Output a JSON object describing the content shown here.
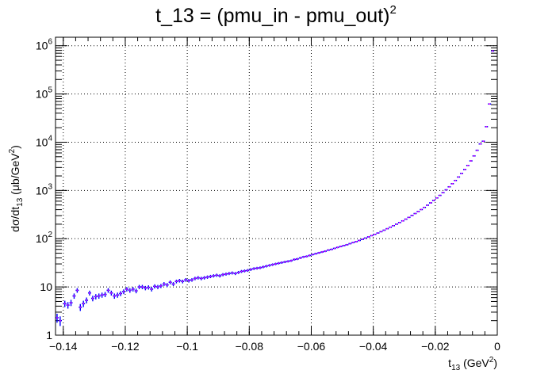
{
  "chart_data": {
    "type": "scatter",
    "title": {
      "main": "t_13 = (pmu_in - pmu_out)",
      "superscript": "2"
    },
    "xlabel": {
      "base": "t",
      "sub": "13",
      "unit_open": " (GeV",
      "unit_sup": "2",
      "unit_close": ")"
    },
    "ylabel": {
      "prefix": "dσ/dt",
      "sub": "13",
      "unit_open": " (μb/GeV",
      "unit_sup": "2",
      "unit_close": ")"
    },
    "x_tick_labels": [
      "−0.14",
      "−0.12",
      "−0.1",
      "−0.08",
      "−0.06",
      "−0.04",
      "−0.02",
      "0"
    ],
    "x_ticks": [
      -0.14,
      -0.12,
      -0.1,
      -0.08,
      -0.06,
      -0.04,
      -0.02,
      0
    ],
    "y_ticks": [
      {
        "value": 1,
        "base": "1",
        "exp": ""
      },
      {
        "value": 10,
        "base": "10",
        "exp": ""
      },
      {
        "value": 100,
        "base": "10",
        "exp": "2"
      },
      {
        "value": 1000,
        "base": "10",
        "exp": "3"
      },
      {
        "value": 10000,
        "base": "10",
        "exp": "4"
      },
      {
        "value": 100000,
        "base": "10",
        "exp": "5"
      },
      {
        "value": 1000000,
        "base": "10",
        "exp": "6"
      }
    ],
    "xlim": [
      -0.1425,
      0.0
    ],
    "ylim": [
      1,
      1500000
    ],
    "yscale": "log",
    "grid": true,
    "marker_color": "#0000ff",
    "marker_accent_color": "#ff00ff",
    "points": [
      [
        -0.142,
        2.3
      ],
      [
        -0.141,
        2.0
      ],
      [
        -0.1395,
        4.5
      ],
      [
        -0.1385,
        4.2
      ],
      [
        -0.1375,
        4.7
      ],
      [
        -0.1365,
        6.5
      ],
      [
        -0.1355,
        8.5
      ],
      [
        -0.1345,
        3.8
      ],
      [
        -0.1335,
        4.5
      ],
      [
        -0.1325,
        5.3
      ],
      [
        -0.1315,
        7.5
      ],
      [
        -0.1305,
        5.8
      ],
      [
        -0.1295,
        6.3
      ],
      [
        -0.1285,
        6.5
      ],
      [
        -0.1275,
        6.8
      ],
      [
        -0.1265,
        7.0
      ],
      [
        -0.1255,
        8.5
      ],
      [
        -0.1245,
        7.5
      ],
      [
        -0.1235,
        6.5
      ],
      [
        -0.1225,
        6.8
      ],
      [
        -0.1215,
        7.3
      ],
      [
        -0.1205,
        8.0
      ],
      [
        -0.1195,
        9.0
      ],
      [
        -0.1185,
        8.5
      ],
      [
        -0.1175,
        9.0
      ],
      [
        -0.1165,
        8.3
      ],
      [
        -0.1155,
        10.0
      ],
      [
        -0.1145,
        10.0
      ],
      [
        -0.1135,
        9.5
      ],
      [
        -0.1125,
        9.8
      ],
      [
        -0.1115,
        9.0
      ],
      [
        -0.1105,
        10.3
      ],
      [
        -0.1095,
        10.0
      ],
      [
        -0.1085,
        10.5
      ],
      [
        -0.1075,
        11.5
      ],
      [
        -0.1065,
        11.0
      ],
      [
        -0.1055,
        12.5
      ],
      [
        -0.1045,
        11.5
      ],
      [
        -0.1035,
        13.0
      ],
      [
        -0.1025,
        13.5
      ],
      [
        -0.1015,
        13.0
      ],
      [
        -0.1005,
        14.0
      ],
      [
        -0.0995,
        13.5
      ],
      [
        -0.0985,
        14.0
      ],
      [
        -0.0975,
        15.0
      ],
      [
        -0.0965,
        15.5
      ],
      [
        -0.0955,
        15.0
      ],
      [
        -0.0945,
        15.5
      ],
      [
        -0.0935,
        16.0
      ],
      [
        -0.0925,
        16.5
      ],
      [
        -0.0915,
        17.0
      ],
      [
        -0.0905,
        17.5
      ],
      [
        -0.0895,
        17.0
      ],
      [
        -0.0885,
        18.0
      ],
      [
        -0.0875,
        18.5
      ],
      [
        -0.0865,
        19.0
      ],
      [
        -0.0855,
        19.5
      ],
      [
        -0.0845,
        19.0
      ],
      [
        -0.0835,
        20.0
      ],
      [
        -0.0825,
        21.0
      ],
      [
        -0.0815,
        21.5
      ],
      [
        -0.0805,
        22.0
      ],
      [
        -0.0795,
        23.0
      ],
      [
        -0.0785,
        24.0
      ],
      [
        -0.0775,
        24.5
      ],
      [
        -0.0765,
        25.0
      ],
      [
        -0.0755,
        26.0
      ],
      [
        -0.0745,
        27.0
      ],
      [
        -0.0735,
        28.0
      ],
      [
        -0.0725,
        29.0
      ],
      [
        -0.0715,
        30.0
      ],
      [
        -0.0705,
        31.0
      ],
      [
        -0.0695,
        32.0
      ],
      [
        -0.0685,
        33.0
      ],
      [
        -0.0675,
        34.0
      ],
      [
        -0.0665,
        35.0
      ],
      [
        -0.0655,
        37.0
      ],
      [
        -0.0645,
        38.0
      ],
      [
        -0.0635,
        40.0
      ],
      [
        -0.0625,
        42.0
      ],
      [
        -0.0615,
        43.0
      ],
      [
        -0.0605,
        45.0
      ],
      [
        -0.0595,
        47.0
      ],
      [
        -0.0585,
        49.0
      ],
      [
        -0.0575,
        51.0
      ],
      [
        -0.0565,
        53.0
      ],
      [
        -0.0555,
        55.0
      ],
      [
        -0.0545,
        58.0
      ],
      [
        -0.0535,
        60.0
      ],
      [
        -0.0525,
        63.0
      ],
      [
        -0.0515,
        66.0
      ],
      [
        -0.0505,
        69.0
      ],
      [
        -0.0495,
        72.0
      ],
      [
        -0.0485,
        75.0
      ],
      [
        -0.0475,
        79.0
      ],
      [
        -0.0465,
        83.0
      ],
      [
        -0.0455,
        87.0
      ],
      [
        -0.0445,
        92.0
      ],
      [
        -0.0435,
        97.0
      ],
      [
        -0.0425,
        103.0
      ],
      [
        -0.0415,
        109.0
      ],
      [
        -0.0405,
        116.0
      ],
      [
        -0.0395,
        123.0
      ],
      [
        -0.0385,
        131.0
      ],
      [
        -0.0375,
        140.0
      ],
      [
        -0.0365,
        150.0
      ],
      [
        -0.0355,
        161.0
      ],
      [
        -0.0345,
        173.0
      ],
      [
        -0.0335,
        186.0
      ],
      [
        -0.0325,
        200.0
      ],
      [
        -0.0315,
        216.0
      ],
      [
        -0.0305,
        234.0
      ],
      [
        -0.0295,
        254.0
      ],
      [
        -0.0285,
        277.0
      ],
      [
        -0.0275,
        303.0
      ],
      [
        -0.0265,
        332.0
      ],
      [
        -0.0255,
        365.0
      ],
      [
        -0.0245,
        402.0
      ],
      [
        -0.0235,
        445.0
      ],
      [
        -0.0225,
        495.0
      ],
      [
        -0.0215,
        553.0
      ],
      [
        -0.0205,
        620.0
      ],
      [
        -0.0195,
        700.0
      ],
      [
        -0.0185,
        790.0
      ],
      [
        -0.0175,
        900.0
      ],
      [
        -0.0165,
        1030.0
      ],
      [
        -0.0155,
        1190.0
      ],
      [
        -0.0145,
        1380.0
      ],
      [
        -0.0135,
        1610.0
      ],
      [
        -0.0125,
        1900.0
      ],
      [
        -0.0115,
        2260.0
      ],
      [
        -0.0105,
        2720.0
      ],
      [
        -0.0095,
        3300.0
      ],
      [
        -0.0085,
        4100.0
      ],
      [
        -0.0075,
        5200.0
      ],
      [
        -0.0065,
        6800.0
      ],
      [
        -0.0055,
        9200.0
      ],
      [
        -0.0045,
        10500.0
      ],
      [
        -0.0035,
        21000.0
      ],
      [
        -0.0025,
        62000.0
      ],
      [
        -0.0015,
        780000.0
      ]
    ]
  }
}
